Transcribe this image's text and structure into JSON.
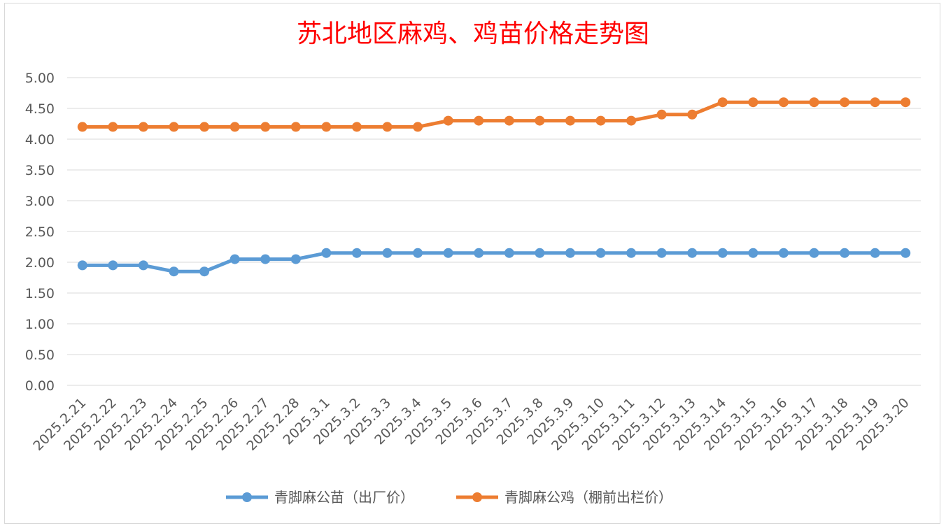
{
  "chart_data": {
    "type": "line",
    "title": "苏北地区麻鸡、鸡苗价格走势图",
    "xlabel": "",
    "ylabel": "",
    "ylim": [
      0,
      5
    ],
    "ytick_step": 0.5,
    "grid": true,
    "legend_position": "bottom",
    "categories": [
      "2025.2.21",
      "2025.2.22",
      "2025.2.23",
      "2025.2.24",
      "2025.2.25",
      "2025.2.26",
      "2025.2.27",
      "2025.2.28",
      "2025.3.1",
      "2025.3.2",
      "2025.3.3",
      "2025.3.4",
      "2025.3.5",
      "2025.3.6",
      "2025.3.7",
      "2025.3.8",
      "2025.3.9",
      "2025.3.10",
      "2025.3.11",
      "2025.3.12",
      "2025.3.13",
      "2025.3.14",
      "2025.3.15",
      "2025.3.16",
      "2025.3.17",
      "2025.3.18",
      "2025.3.19",
      "2025.3.20"
    ],
    "series": [
      {
        "name": "青脚麻公苗（出厂价）",
        "color": "#5b9bd5",
        "values": [
          1.95,
          1.95,
          1.95,
          1.85,
          1.85,
          2.05,
          2.05,
          2.05,
          2.15,
          2.15,
          2.15,
          2.15,
          2.15,
          2.15,
          2.15,
          2.15,
          2.15,
          2.15,
          2.15,
          2.15,
          2.15,
          2.15,
          2.15,
          2.15,
          2.15,
          2.15,
          2.15,
          2.15
        ]
      },
      {
        "name": "青脚麻公鸡（棚前出栏价）",
        "color": "#ed7d31",
        "values": [
          4.2,
          4.2,
          4.2,
          4.2,
          4.2,
          4.2,
          4.2,
          4.2,
          4.2,
          4.2,
          4.2,
          4.2,
          4.3,
          4.3,
          4.3,
          4.3,
          4.3,
          4.3,
          4.3,
          4.4,
          4.4,
          4.6,
          4.6,
          4.6,
          4.6,
          4.6,
          4.6,
          4.6
        ]
      }
    ]
  }
}
